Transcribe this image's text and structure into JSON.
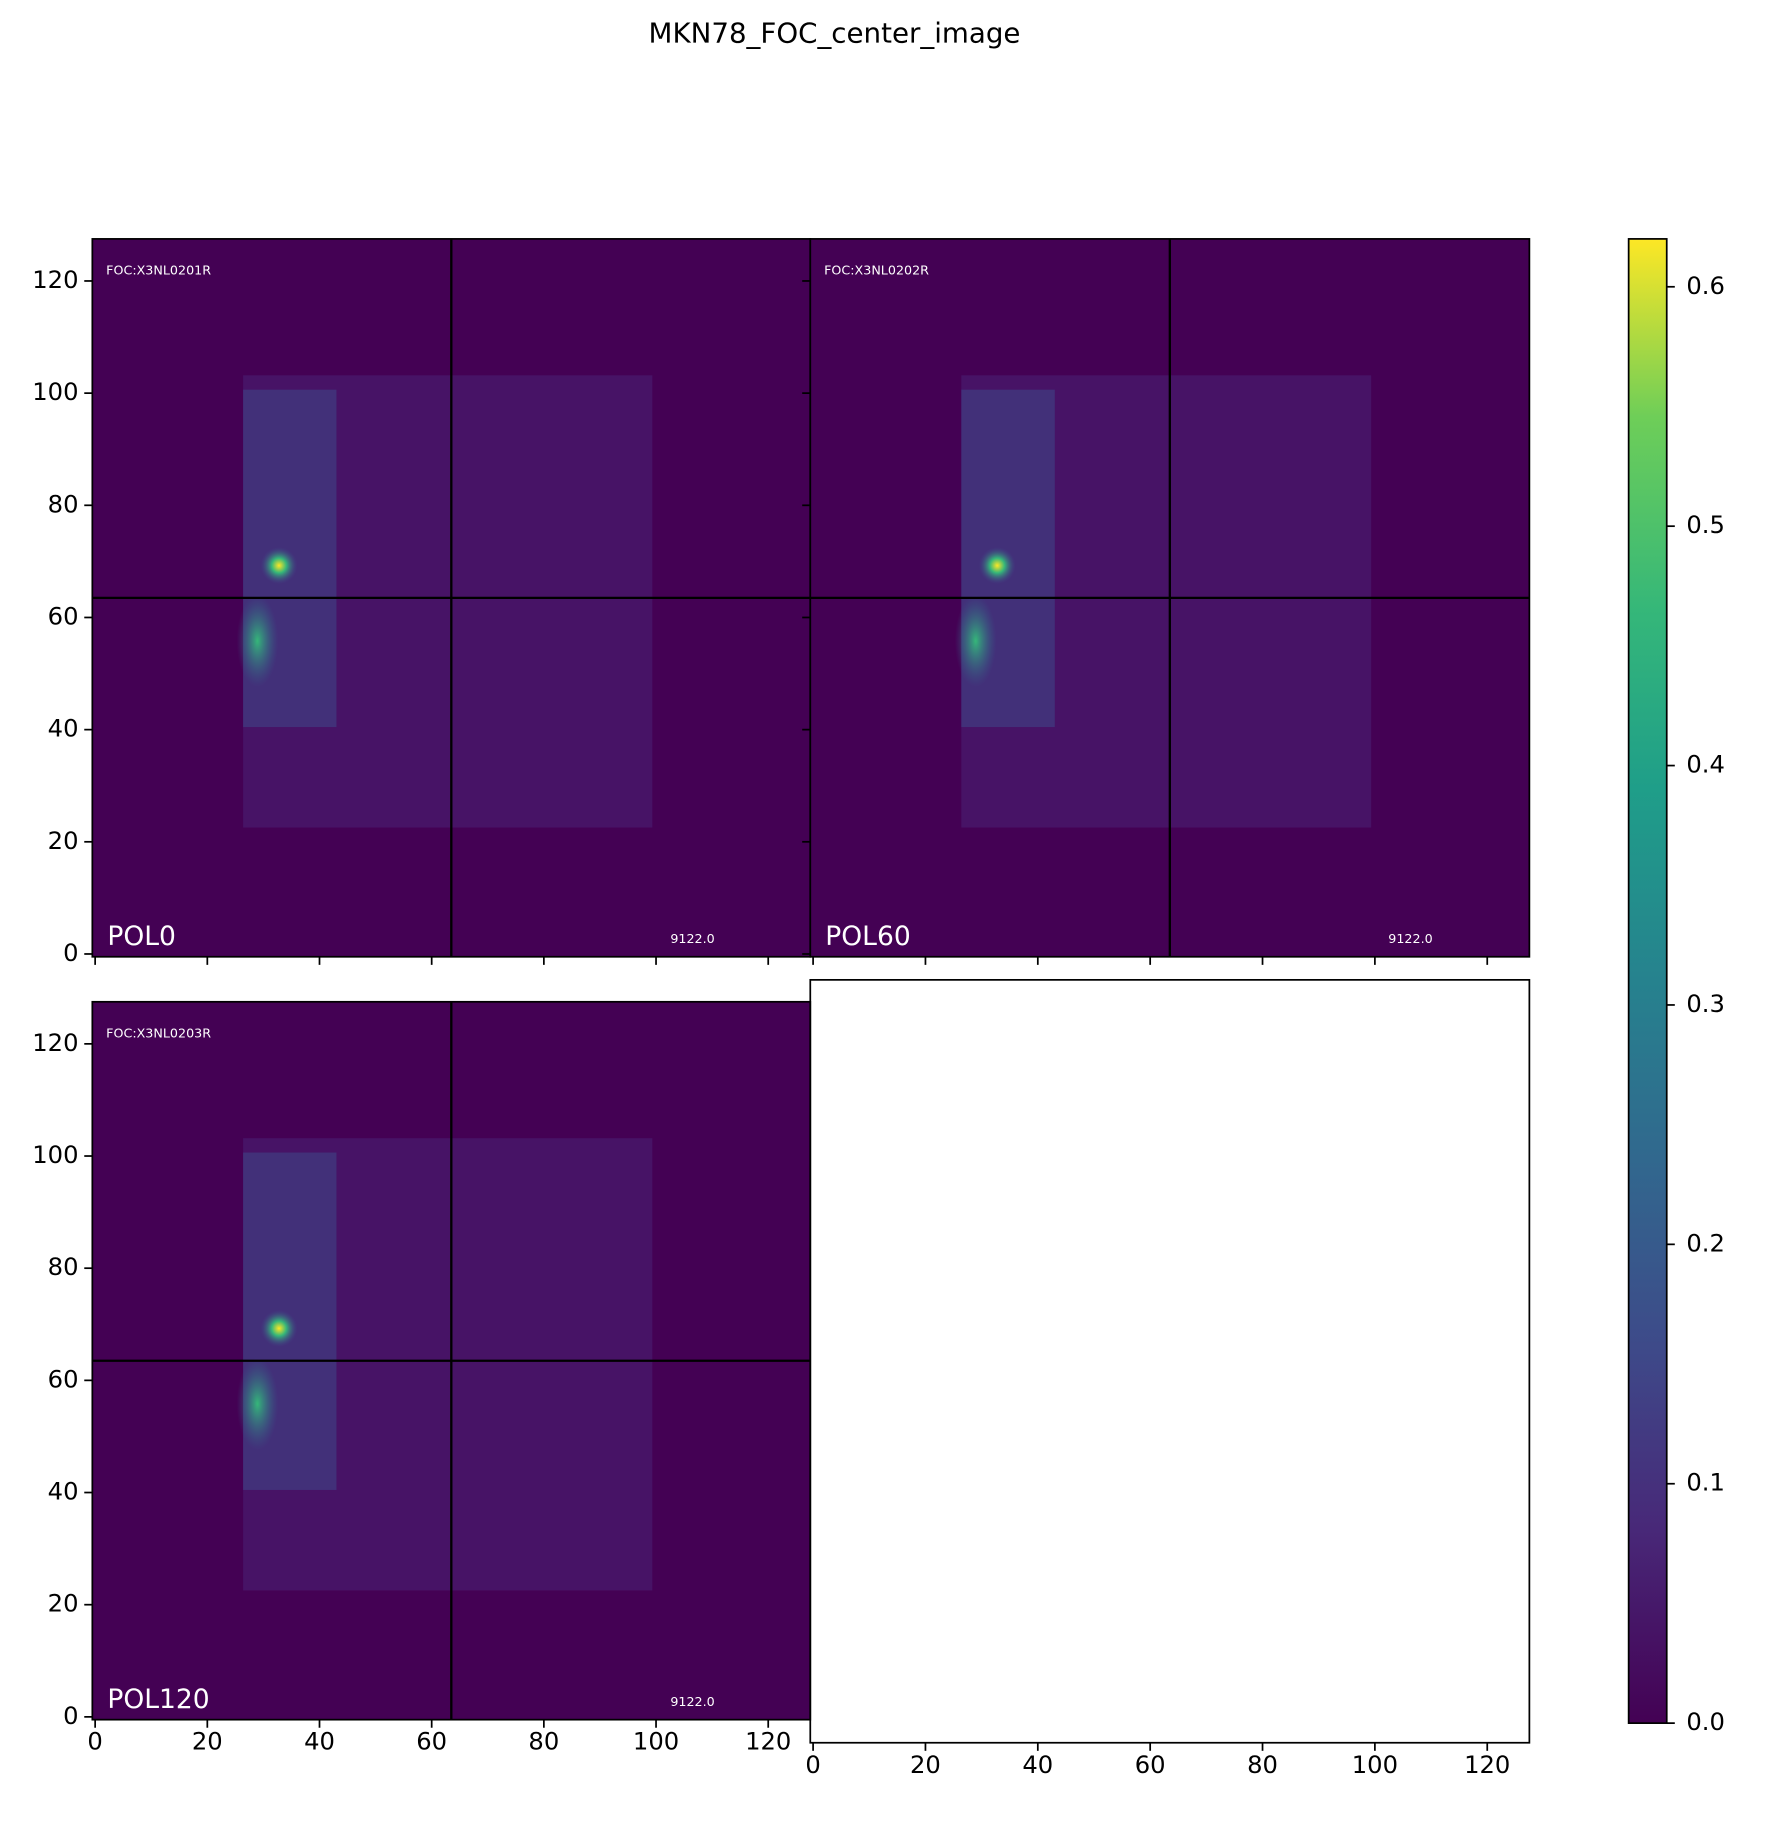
{
  "title": "MKN78_FOC_center_image",
  "chart_data": [
    {
      "type": "image",
      "label": "POL0",
      "corner_text": "FOC:X3NL0201R",
      "exptime_text": "9122.0",
      "xlim": [
        -0.5,
        127.5
      ],
      "ylim": [
        -0.5,
        127.5
      ],
      "xticks": [
        0,
        20,
        40,
        60,
        80,
        100,
        120
      ],
      "yticks": [
        0,
        20,
        40,
        60,
        80,
        100,
        120
      ],
      "show_xlabels": false,
      "show_ylabels": true,
      "crosshair": 63.5,
      "color": "#440154"
    },
    {
      "type": "image",
      "label": "POL60",
      "corner_text": "FOC:X3NL0202R",
      "exptime_text": "9122.0",
      "xlim": [
        -0.5,
        127.5
      ],
      "ylim": [
        -0.5,
        127.5
      ],
      "xticks": [
        0,
        20,
        40,
        60,
        80,
        100,
        120
      ],
      "yticks": [
        0,
        20,
        40,
        60,
        80,
        100,
        120
      ],
      "show_xlabels": false,
      "show_ylabels": false,
      "crosshair": 63.5,
      "color": "#440154"
    },
    {
      "type": "image",
      "label": "POL120",
      "corner_text": "FOC:X3NL0203R",
      "exptime_text": "9122.0",
      "xlim": [
        -0.5,
        127.5
      ],
      "ylim": [
        -0.5,
        127.5
      ],
      "xticks": [
        0,
        20,
        40,
        60,
        80,
        100,
        120
      ],
      "yticks": [
        0,
        20,
        40,
        60,
        80,
        100,
        120
      ],
      "show_xlabels": true,
      "show_ylabels": true,
      "crosshair": 63.5,
      "color": "#440154"
    },
    {
      "type": "empty",
      "xlim": [
        -0.5,
        127.5
      ],
      "xticks": [
        0,
        20,
        40,
        60,
        80,
        100,
        120
      ],
      "show_xlabels": true
    }
  ],
  "colorbar": {
    "ylim": [
      0,
      0.62
    ],
    "yticks": [
      {
        "value": 0,
        "label": "0.0"
      },
      0.1,
      0.2,
      0.3,
      0.4,
      0.5,
      0.6
    ]
  }
}
